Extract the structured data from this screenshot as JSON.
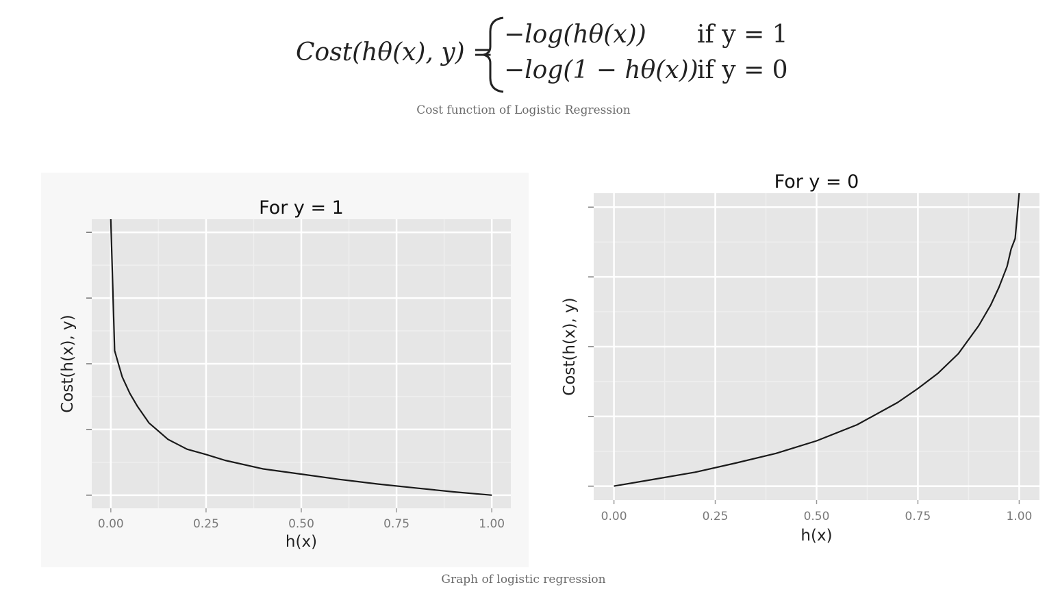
{
  "formula": {
    "lhs": "Cost(hθ(x), y) =",
    "case1_expr": "−log(hθ(x))",
    "case1_cond": "if y = 1",
    "case2_expr": "−log(1 − hθ(x))",
    "case2_cond": "if y = 0"
  },
  "captions": {
    "formula_caption": "Cost function of Logistic Regression",
    "graph_caption": "Graph of logistic regression"
  },
  "chart_data": [
    {
      "type": "line",
      "title": "For y = 1",
      "xlabel": "h(x)",
      "ylabel": "Cost(h(x), y)",
      "xticks": [
        "0.00",
        "0.25",
        "0.50",
        "0.75",
        "1.00"
      ],
      "xlim": [
        -0.05,
        1.05
      ],
      "ylim": [
        -0.2,
        4.2
      ],
      "y_ticks_unlabeled": [
        0,
        1,
        2,
        3,
        4
      ],
      "function": "-log(h(x))",
      "grid": true,
      "x": [
        0.0,
        0.01,
        0.02,
        0.03,
        0.05,
        0.07,
        0.1,
        0.15,
        0.2,
        0.25,
        0.3,
        0.4,
        0.5,
        0.6,
        0.7,
        0.8,
        0.9,
        1.0
      ],
      "y": [
        4.2,
        2.2,
        2.0,
        1.8,
        1.55,
        1.35,
        1.1,
        0.85,
        0.7,
        0.62,
        0.53,
        0.4,
        0.32,
        0.24,
        0.17,
        0.11,
        0.05,
        0.0
      ]
    },
    {
      "type": "line",
      "title": "For y = 0",
      "xlabel": "h(x)",
      "ylabel": "Cost(h(x), y)",
      "xticks": [
        "0.00",
        "0.25",
        "0.50",
        "0.75",
        "1.00"
      ],
      "xlim": [
        -0.05,
        1.05
      ],
      "ylim": [
        -0.2,
        4.2
      ],
      "y_ticks_unlabeled": [
        0,
        1,
        2,
        3,
        4
      ],
      "function": "-log(1 - h(x))",
      "grid": true,
      "x": [
        0.0,
        0.1,
        0.2,
        0.3,
        0.4,
        0.5,
        0.6,
        0.7,
        0.75,
        0.8,
        0.85,
        0.9,
        0.93,
        0.95,
        0.97,
        0.98,
        0.99,
        1.0
      ],
      "y": [
        0.0,
        0.1,
        0.2,
        0.33,
        0.47,
        0.65,
        0.88,
        1.2,
        1.4,
        1.62,
        1.9,
        2.3,
        2.6,
        2.85,
        3.15,
        3.4,
        3.55,
        4.2
      ]
    }
  ]
}
